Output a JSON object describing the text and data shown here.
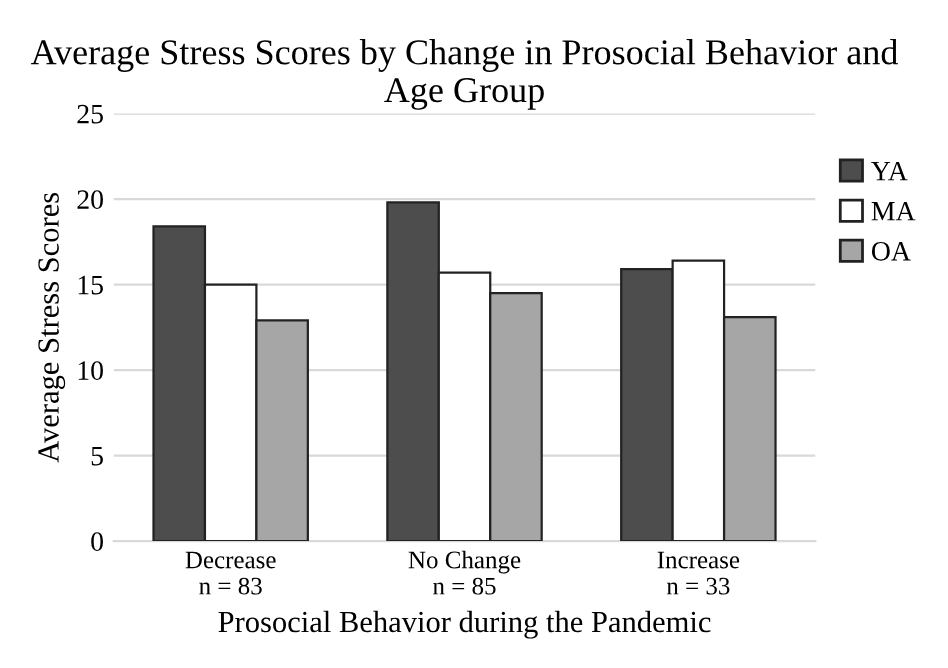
{
  "chart_data": {
    "type": "bar",
    "title": "Average Stress Scores by Change in Prosocial Behavior and Age Group",
    "xlabel": "Prosocial Behavior during the Pandemic",
    "ylabel": "Average Stress Scores",
    "categories": [
      "Decrease\nn = 83",
      "No Change\nn = 85",
      "Increase\nn = 33"
    ],
    "series": [
      {
        "name": "YA",
        "color": "#4d4d4d",
        "values": [
          18.4,
          19.8,
          15.9
        ]
      },
      {
        "name": "MA",
        "color": "#ffffff",
        "values": [
          15.0,
          15.7,
          16.4
        ]
      },
      {
        "name": "OA",
        "color": "#a6a6a6",
        "values": [
          12.9,
          14.5,
          13.1
        ]
      }
    ],
    "ylim": [
      0,
      25
    ],
    "yticks": [
      0,
      5,
      10,
      15,
      20,
      25
    ],
    "grid": "y",
    "legend": "right"
  }
}
